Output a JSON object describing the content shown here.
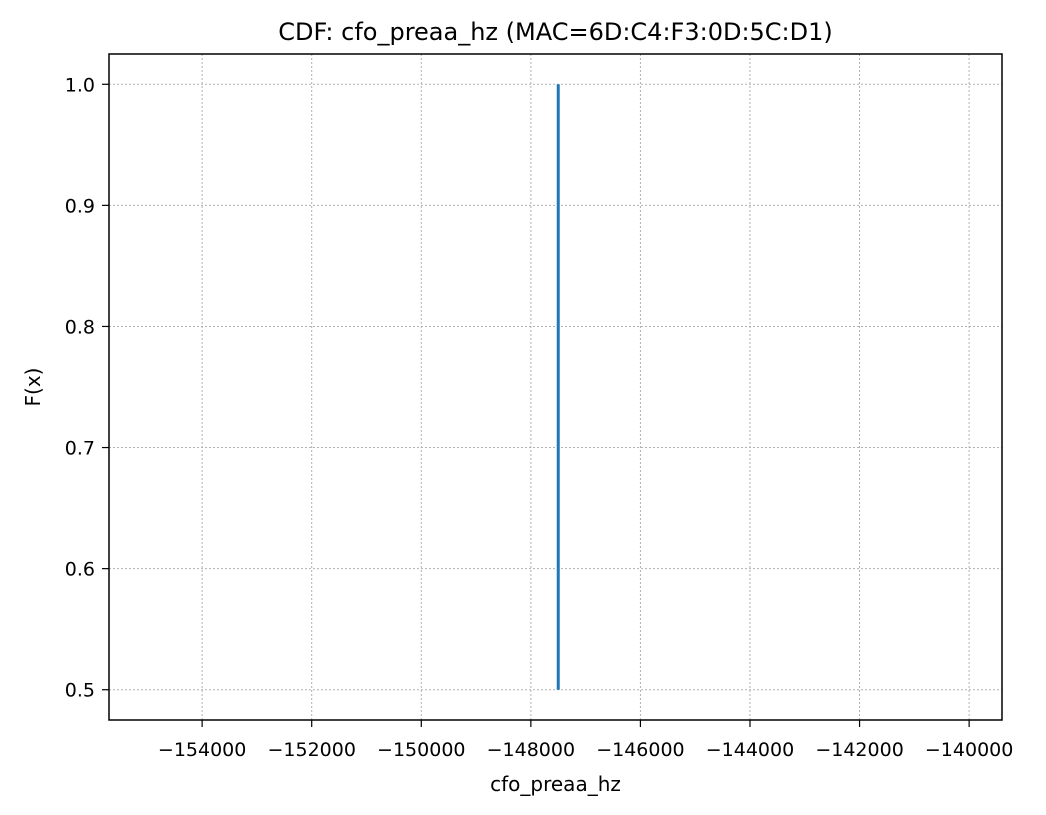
{
  "chart_data": {
    "type": "line",
    "title": "CDF: cfo_preaa_hz (MAC=6D:C4:F3:0D:5C:D1)",
    "xlabel": "cfo_preaa_hz",
    "ylabel": "F(x)",
    "xlim": [
      -155700,
      -139400
    ],
    "ylim": [
      0.475,
      1.025
    ],
    "xticks": [
      -154000,
      -152000,
      -150000,
      -148000,
      -146000,
      -144000,
      -142000,
      -140000
    ],
    "xtick_labels": [
      "−154000",
      "−152000",
      "−150000",
      "−148000",
      "−146000",
      "−144000",
      "−142000",
      "−140000"
    ],
    "yticks": [
      0.5,
      0.6,
      0.7,
      0.8,
      0.9,
      1.0
    ],
    "ytick_labels": [
      "0.5",
      "0.6",
      "0.7",
      "0.8",
      "0.9",
      "1.0"
    ],
    "grid": true,
    "series": [
      {
        "color": "#1f77b4",
        "x": [
          -147500,
          -147500
        ],
        "y": [
          0.5,
          1.0
        ]
      }
    ]
  }
}
